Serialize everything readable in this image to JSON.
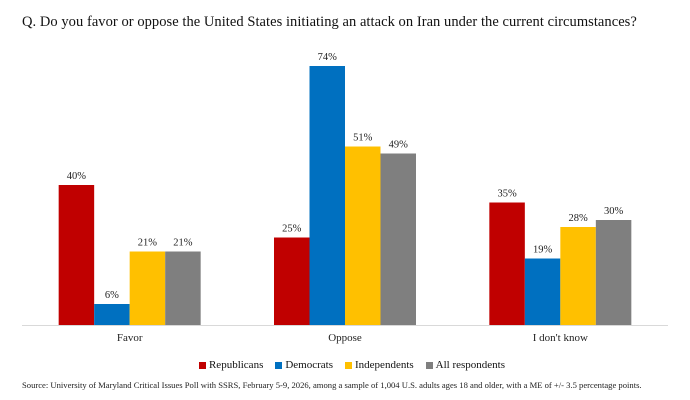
{
  "title": "Q. Do you favor or oppose the United States initiating an attack on Iran under the current circumstances?",
  "source": "Source: University of Maryland Critical Issues Poll with SSRS, February 5-9, 2026, among a sample of 1,004 U.S. adults ages 18 and older, with a ME of +/- 3.5 percentage points.",
  "chart_data": {
    "type": "bar",
    "categories": [
      "Favor",
      "Oppose",
      "I don't know"
    ],
    "series": [
      {
        "name": "Republicans",
        "color": "#C00000",
        "values": [
          40,
          25,
          35
        ],
        "labels": [
          "40%",
          "25%",
          "35%"
        ]
      },
      {
        "name": "Democrats",
        "color": "#0070C0",
        "values": [
          6,
          74,
          19
        ],
        "labels": [
          "6%",
          "74%",
          "19%"
        ]
      },
      {
        "name": "Independents",
        "color": "#FFC000",
        "values": [
          21,
          51,
          28
        ],
        "labels": [
          "21%",
          "51%",
          "28%"
        ]
      },
      {
        "name": "All respondents",
        "color": "#7F7F7F",
        "values": [
          21,
          49,
          30
        ],
        "labels": [
          "21%",
          "49%",
          "30%"
        ]
      }
    ],
    "ylim": [
      0,
      80
    ],
    "grid": false,
    "legend_position": "bottom"
  }
}
